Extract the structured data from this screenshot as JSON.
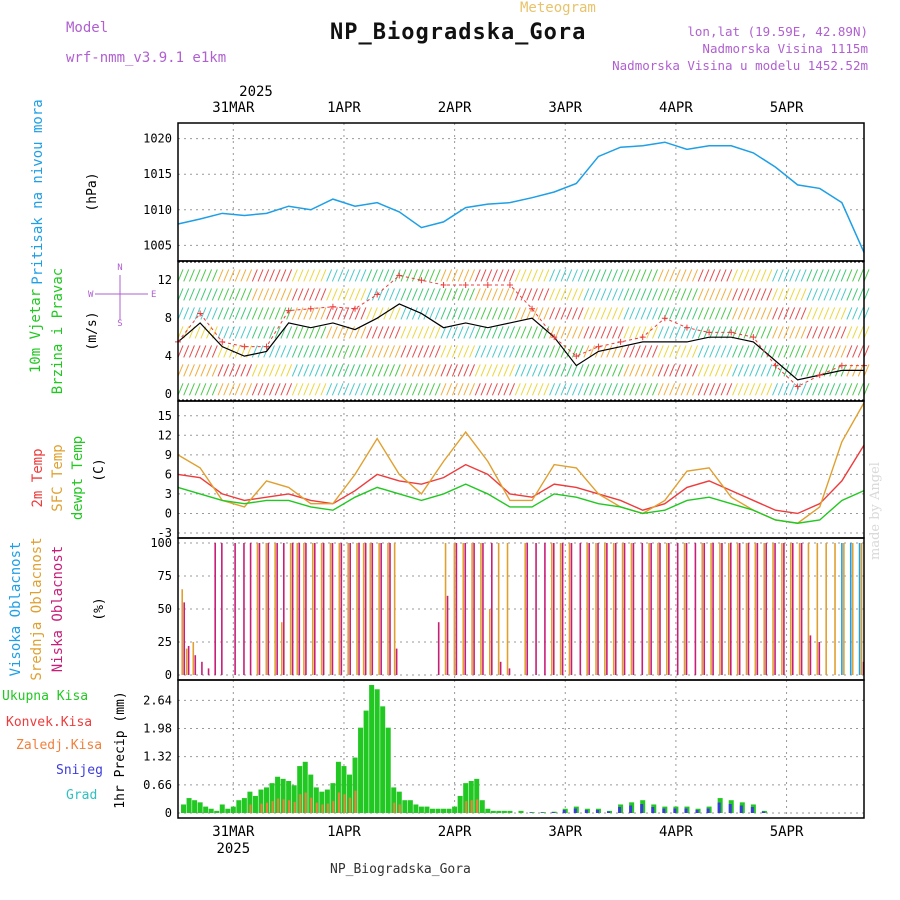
{
  "header": {
    "title": "NP_Biogradska_Gora",
    "subtitle": "Meteogram",
    "model_label": "Model",
    "model_value": "wrf-nmm_v3.9.1 e1km",
    "lonlat": "lon,lat (19.59E, 42.89N)",
    "elevation": "Nadmorska Visina 1115m",
    "model_elevation": "Nadmorska Visina u modelu 1452.52m"
  },
  "footer": "NP_Biogradska_Gora",
  "watermark": "made by Angel",
  "colors": {
    "pressure": "#1e9fe6",
    "temp2m": "#ee3c3c",
    "sfc_temp": "#e0a030",
    "dewpoint": "#22c822",
    "high_cloud": "#1e9fe6",
    "mid_cloud": "#e0a030",
    "low_cloud": "#c81e78",
    "total_precip": "#22c822",
    "conv_precip": "#ee3c3c",
    "frz_precip": "#f0803c",
    "snow": "#3c3cdc",
    "graupel": "#30c0c0",
    "wind_line": "#000000",
    "gust_marker": "#ee3c3c",
    "grid": "#999999"
  },
  "chart_data": [
    {
      "type": "line",
      "name": "pressure",
      "axis_label_left": "Pritisak na nivou mora",
      "unit": "(hPa)",
      "year": "2025",
      "x_tick_labels": [
        "31MAR",
        "1APR",
        "2APR",
        "3APR",
        "4APR",
        "5APR"
      ],
      "x_day_positions": [
        0.5,
        1.5,
        2.5,
        3.5,
        4.5,
        5.5
      ],
      "xlim": [
        0,
        6.2
      ],
      "ylim": [
        1003.5,
        1021.5
      ],
      "yticks": [
        1005,
        1010,
        1015,
        1020
      ],
      "x": [
        0,
        0.2,
        0.4,
        0.6,
        0.8,
        1.0,
        1.2,
        1.4,
        1.6,
        1.8,
        2.0,
        2.2,
        2.4,
        2.6,
        2.8,
        3.0,
        3.2,
        3.4,
        3.6,
        3.8,
        4.0,
        4.2,
        4.4,
        4.6,
        4.8,
        5.0,
        5.2,
        5.4,
        5.6,
        5.8,
        6.0,
        6.2
      ],
      "values": [
        1008,
        1008.7,
        1009.5,
        1009.2,
        1009.5,
        1010.5,
        1010.0,
        1011.5,
        1010.5,
        1011.0,
        1009.7,
        1007.5,
        1008.3,
        1010.3,
        1010.8,
        1011.0,
        1011.7,
        1012.5,
        1013.7,
        1017.5,
        1018.8,
        1019.0,
        1019.5,
        1018.5,
        1019.0,
        1019.0,
        1018.0,
        1016.0,
        1013.5,
        1013.0,
        1011.0,
        1004.0
      ]
    },
    {
      "type": "line",
      "name": "wind",
      "axis_label_left": "10m Vjetar",
      "axis_label_left2": "Brzina i Pravac",
      "unit": "(m/s)",
      "compass_ns": "N",
      "compass_we": "W",
      "compass_e": "E",
      "compass_s": "S",
      "ylim": [
        -0.2,
        13.5
      ],
      "yticks": [
        0,
        4,
        8,
        12
      ],
      "x": [
        0,
        0.2,
        0.4,
        0.6,
        0.8,
        1.0,
        1.2,
        1.4,
        1.6,
        1.8,
        2.0,
        2.2,
        2.4,
        2.6,
        2.8,
        3.0,
        3.2,
        3.4,
        3.6,
        3.8,
        4.0,
        4.2,
        4.4,
        4.6,
        4.8,
        5.0,
        5.2,
        5.4,
        5.6,
        5.8,
        6.0,
        6.2
      ],
      "series": [
        {
          "name": "speed",
          "values": [
            5.5,
            7.5,
            5.0,
            4.0,
            4.5,
            7.5,
            7.0,
            7.5,
            6.8,
            8.0,
            9.5,
            8.5,
            7.0,
            7.5,
            7.0,
            7.5,
            8.0,
            6.0,
            3.0,
            4.5,
            5.0,
            5.5,
            5.5,
            5.5,
            6.0,
            6.0,
            5.5,
            3.5,
            1.5,
            2.0,
            2.5,
            2.5
          ]
        },
        {
          "name": "gust",
          "values": [
            5.5,
            8.5,
            5.5,
            5.0,
            5.0,
            8.8,
            9.0,
            9.2,
            9.0,
            10.5,
            12.5,
            12.0,
            11.5,
            11.5,
            11.5,
            11.5,
            9.0,
            6.0,
            4.0,
            5.0,
            5.5,
            6.0,
            8.0,
            7.0,
            6.5,
            6.5,
            6.0,
            3.0,
            0.8,
            2.0,
            3.0,
            3.0
          ]
        }
      ]
    },
    {
      "type": "line",
      "name": "temperature",
      "axis_label_1": "2m Temp",
      "axis_label_2": "SFC Temp",
      "axis_label_3": "dewpt Temp",
      "unit": "(C)",
      "ylim": [
        -3,
        16.5
      ],
      "yticks": [
        -3,
        0,
        3,
        6,
        9,
        12,
        15
      ],
      "x": [
        0,
        0.2,
        0.4,
        0.6,
        0.8,
        1.0,
        1.2,
        1.4,
        1.6,
        1.8,
        2.0,
        2.2,
        2.4,
        2.6,
        2.8,
        3.0,
        3.2,
        3.4,
        3.6,
        3.8,
        4.0,
        4.2,
        4.4,
        4.6,
        4.8,
        5.0,
        5.2,
        5.4,
        5.6,
        5.8,
        6.0,
        6.2
      ],
      "series": [
        {
          "name": "2m Temp",
          "values": [
            6.0,
            5.5,
            3.0,
            2.0,
            2.5,
            3.0,
            2.0,
            1.5,
            3.5,
            6.0,
            5.0,
            4.5,
            5.5,
            7.5,
            6.0,
            3.0,
            2.5,
            4.5,
            4.0,
            3.0,
            2.0,
            0.5,
            1.5,
            4.0,
            5.0,
            3.5,
            2.0,
            0.5,
            0.0,
            1.5,
            5.0,
            10.5
          ]
        },
        {
          "name": "SFC Temp",
          "values": [
            9.0,
            7.0,
            2.0,
            1.0,
            5.0,
            4.0,
            1.5,
            1.5,
            6.0,
            11.5,
            6.0,
            3.0,
            8.0,
            12.5,
            8.0,
            2.0,
            2.0,
            7.5,
            7.0,
            3.0,
            1.0,
            0.0,
            2.0,
            6.5,
            7.0,
            2.5,
            0.5,
            -1.0,
            -1.5,
            1.0,
            11.0,
            17.0
          ]
        },
        {
          "name": "dewpt Temp",
          "values": [
            4.0,
            3.0,
            2.0,
            1.5,
            2.0,
            2.0,
            1.0,
            0.5,
            2.5,
            4.0,
            3.0,
            2.0,
            3.0,
            4.5,
            3.0,
            1.0,
            1.0,
            3.0,
            2.5,
            1.5,
            1.0,
            0.0,
            0.5,
            2.0,
            2.5,
            1.5,
            0.5,
            -1.0,
            -1.5,
            -1.0,
            2.0,
            3.5
          ]
        }
      ]
    },
    {
      "type": "bar",
      "name": "cloud_cover",
      "axis_label_1": "Visoka Oblacnost",
      "axis_label_2": "Srednja Oblacnost",
      "axis_label_3": "Niska Oblacnost",
      "unit": "(%)",
      "ylim": [
        0,
        100
      ],
      "yticks": [
        0,
        25,
        50,
        75,
        100
      ],
      "x": [
        0.02,
        0.06,
        0.12,
        0.18,
        0.24,
        0.3,
        0.36,
        0.48,
        0.56,
        0.62,
        0.7,
        0.78,
        0.86,
        0.92,
        1.0,
        1.06,
        1.12,
        1.2,
        1.28,
        1.36,
        1.44,
        1.52,
        1.6,
        1.66,
        1.72,
        1.8,
        1.88,
        1.94,
        2.0,
        2.08,
        2.16,
        2.24,
        2.32,
        2.4,
        2.48,
        2.56,
        2.64,
        2.72,
        2.8,
        2.88,
        2.96,
        3.04,
        3.12,
        3.2,
        3.28,
        3.36,
        3.44,
        3.52,
        3.6,
        3.68,
        3.76,
        3.84,
        3.92,
        4.0,
        4.08,
        4.16,
        4.24,
        4.32,
        4.4,
        4.48,
        4.56,
        4.64,
        4.72,
        4.8,
        4.88,
        4.96,
        5.04,
        5.12,
        5.2,
        5.28,
        5.36,
        5.44,
        5.52,
        5.6,
        5.68,
        5.76,
        5.84,
        5.92,
        6.0,
        6.08,
        6.16
      ],
      "series": [
        {
          "name": "Visoka Oblacnost",
          "values": [
            0,
            0,
            0,
            0,
            0,
            0,
            0,
            0,
            0,
            0,
            0,
            0,
            0,
            0,
            0,
            0,
            0,
            0,
            0,
            0,
            0,
            0,
            0,
            0,
            0,
            0,
            0,
            0,
            0,
            0,
            0,
            0,
            0,
            0,
            0,
            0,
            0,
            0,
            0,
            0,
            0,
            0,
            0,
            0,
            0,
            0,
            0,
            0,
            0,
            0,
            0,
            0,
            0,
            0,
            0,
            0,
            0,
            0,
            0,
            0,
            0,
            0,
            0,
            0,
            0,
            0,
            0,
            0,
            0,
            0,
            0,
            0,
            0,
            0,
            0,
            0,
            0,
            0,
            100,
            100,
            100
          ]
        },
        {
          "name": "Srednja Oblacnost",
          "values": [
            65,
            20,
            25,
            0,
            0,
            0,
            0,
            0,
            0,
            0,
            100,
            100,
            100,
            40,
            100,
            100,
            100,
            100,
            100,
            100,
            100,
            100,
            100,
            100,
            100,
            100,
            100,
            100,
            0,
            0,
            0,
            0,
            0,
            100,
            100,
            100,
            100,
            100,
            50,
            100,
            100,
            0,
            100,
            0,
            0,
            100,
            100,
            100,
            0,
            100,
            100,
            100,
            100,
            100,
            100,
            0,
            100,
            100,
            100,
            0,
            100,
            0,
            100,
            100,
            100,
            100,
            100,
            100,
            100,
            100,
            100,
            100,
            100,
            100,
            100,
            100,
            100,
            100,
            100,
            100,
            100
          ]
        },
        {
          "name": "Niska Oblacnost",
          "values": [
            55,
            22,
            15,
            10,
            5,
            100,
            100,
            100,
            100,
            100,
            100,
            100,
            100,
            100,
            100,
            100,
            100,
            100,
            100,
            100,
            100,
            100,
            100,
            100,
            100,
            100,
            100,
            20,
            0,
            0,
            0,
            0,
            40,
            60,
            100,
            100,
            100,
            100,
            100,
            10,
            5,
            0,
            100,
            100,
            100,
            100,
            100,
            100,
            100,
            100,
            100,
            100,
            100,
            100,
            100,
            100,
            100,
            100,
            100,
            100,
            100,
            100,
            100,
            100,
            100,
            100,
            100,
            100,
            100,
            100,
            100,
            100,
            100,
            100,
            30,
            25,
            0,
            0,
            0,
            0,
            10
          ]
        }
      ]
    },
    {
      "type": "bar",
      "name": "precipitation",
      "legend_total": "Ukupna Kisa",
      "legend_conv": "Konvek.Kisa",
      "legend_frz": "Zaledj.Kisa",
      "legend_snow": "Snijeg",
      "legend_grad": "Grad",
      "unit": "1hr Precip (mm)",
      "ylim": [
        0,
        3.0
      ],
      "yticks": [
        0,
        0.66,
        1.32,
        1.98,
        2.64
      ],
      "year": "2025",
      "x_tick_labels": [
        "31MAR",
        "1APR",
        "2APR",
        "3APR",
        "4APR",
        "5APR"
      ],
      "x": [
        0.05,
        0.1,
        0.15,
        0.2,
        0.25,
        0.3,
        0.35,
        0.4,
        0.45,
        0.5,
        0.55,
        0.6,
        0.65,
        0.7,
        0.75,
        0.8,
        0.85,
        0.9,
        0.95,
        1.0,
        1.05,
        1.1,
        1.15,
        1.2,
        1.25,
        1.3,
        1.35,
        1.4,
        1.45,
        1.5,
        1.55,
        1.6,
        1.65,
        1.7,
        1.75,
        1.8,
        1.85,
        1.9,
        1.95,
        2.0,
        2.05,
        2.1,
        2.15,
        2.2,
        2.25,
        2.3,
        2.35,
        2.4,
        2.45,
        2.5,
        2.55,
        2.6,
        2.65,
        2.7,
        2.75,
        2.8,
        2.85,
        2.9,
        2.95,
        3.0,
        3.1,
        3.2,
        3.3,
        3.4,
        3.5,
        3.6,
        3.7,
        3.8,
        3.9,
        4.0,
        4.1,
        4.2,
        4.3,
        4.4,
        4.5,
        4.6,
        4.7,
        4.8,
        4.9,
        5.0,
        5.1,
        5.2,
        5.3,
        5.4,
        5.5,
        5.6,
        5.7,
        5.8,
        5.9,
        6.0,
        6.1
      ],
      "values": [
        0.2,
        0.35,
        0.3,
        0.25,
        0.15,
        0.1,
        0.05,
        0.2,
        0.1,
        0.15,
        0.3,
        0.35,
        0.5,
        0.4,
        0.55,
        0.6,
        0.7,
        0.85,
        0.8,
        0.75,
        0.65,
        1.1,
        1.2,
        0.9,
        0.6,
        0.5,
        0.55,
        0.7,
        1.2,
        1.1,
        0.9,
        1.3,
        2.0,
        2.4,
        3.0,
        2.9,
        2.5,
        2.0,
        0.6,
        0.5,
        0.3,
        0.3,
        0.2,
        0.15,
        0.15,
        0.1,
        0.1,
        0.1,
        0.1,
        0.15,
        0.4,
        0.7,
        0.75,
        0.8,
        0.3,
        0.1,
        0.05,
        0.05,
        0.05,
        0.05,
        0.05,
        0.02,
        0.02,
        0.03,
        0.1,
        0.15,
        0.1,
        0.1,
        0.05,
        0.2,
        0.25,
        0.3,
        0.2,
        0.15,
        0.15,
        0.15,
        0.1,
        0.15,
        0.35,
        0.3,
        0.25,
        0.2,
        0.05,
        0.0,
        0.0,
        0.0,
        0.0,
        0.0,
        0.0,
        0.0,
        0.0
      ]
    }
  ]
}
